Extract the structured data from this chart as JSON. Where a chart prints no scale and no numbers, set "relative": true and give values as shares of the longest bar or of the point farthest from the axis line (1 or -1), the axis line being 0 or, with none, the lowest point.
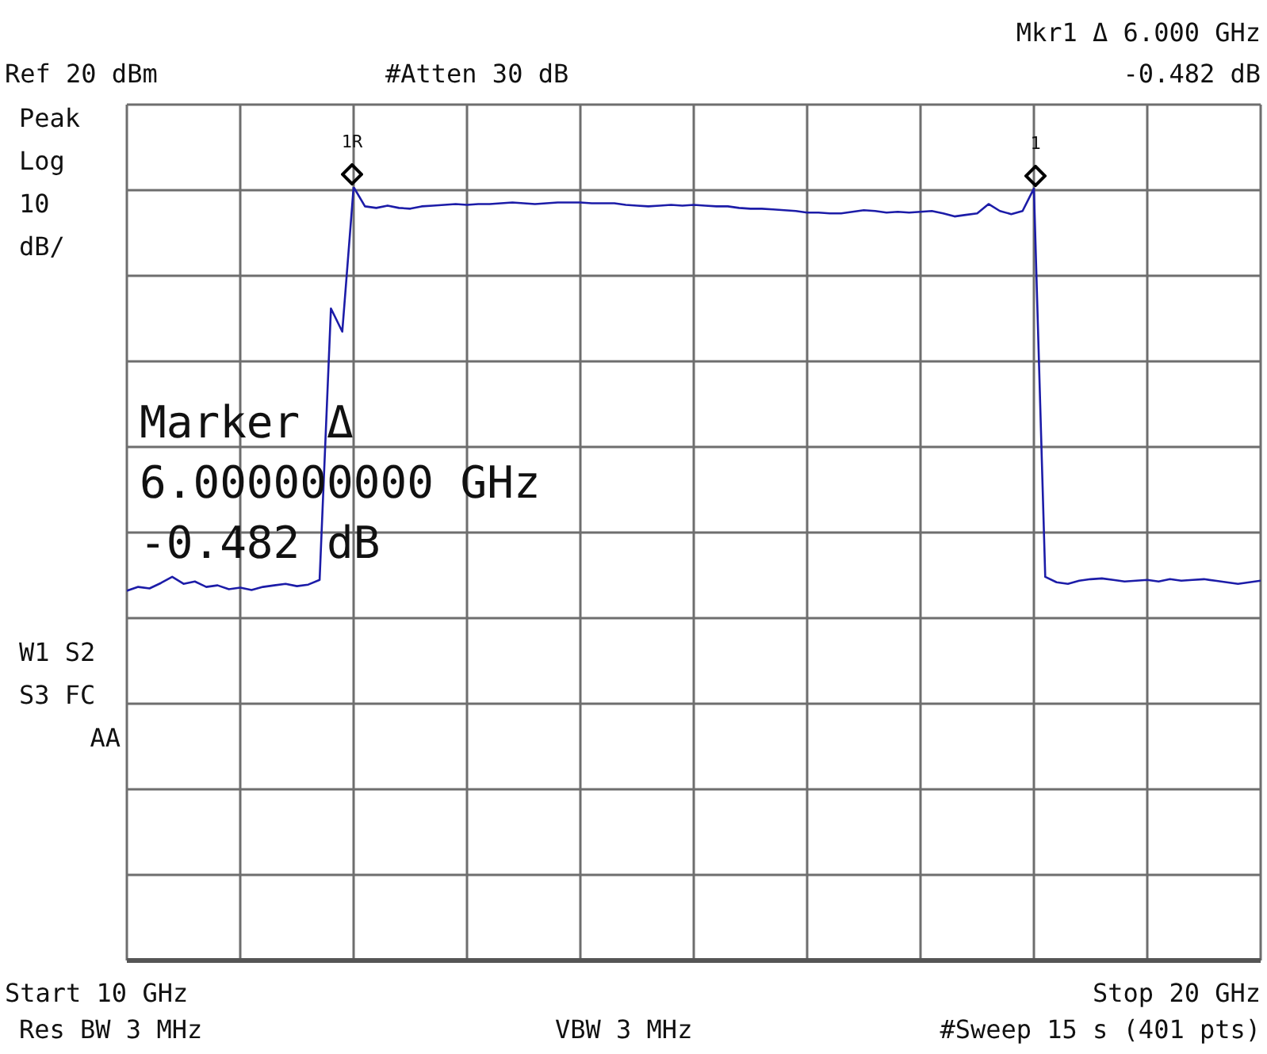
{
  "chart_data": {
    "type": "line",
    "relative": true,
    "categories": [
      null,
      null,
      null,
      null,
      null,
      null,
      null,
      null,
      null,
      null,
      null,
      null,
      null,
      null,
      null,
      null,
      null,
      null,
      null,
      null,
      null,
      null,
      null,
      null,
      null,
      null,
      null,
      null,
      null,
      null,
      null,
      null,
      null,
      null,
      null,
      null,
      null,
      null,
      null,
      null,
      null,
      null,
      null,
      null,
      null,
      null,
      null,
      null,
      null,
      null,
      null,
      null,
      null,
      null,
      null,
      null,
      null,
      null,
      null,
      null,
      null,
      null,
      null,
      null,
      null,
      null,
      null,
      null,
      null,
      null,
      null,
      null,
      null,
      null,
      null,
      null,
      null,
      null,
      null,
      null,
      null,
      null,
      null,
      null,
      null,
      null,
      null,
      null,
      null,
      null,
      null,
      null,
      null,
      null,
      null,
      null,
      null,
      null,
      null,
      null,
      null
    ],
    "series": [
      {
        "color": "#1c1ca8",
        "values": [
          0.478,
          0.483,
          0.481,
          0.488,
          0.496,
          0.487,
          0.49,
          0.483,
          0.485,
          0.48,
          0.482,
          0.479,
          0.483,
          0.485,
          0.487,
          0.484,
          0.486,
          0.492,
          0.843,
          0.813,
          1,
          0.975,
          0.973,
          0.976,
          0.973,
          0.972,
          0.975,
          0.976,
          0.977,
          0.978,
          0.977,
          0.978,
          0.978,
          0.979,
          0.98,
          0.979,
          0.978,
          0.979,
          0.98,
          0.98,
          0.98,
          0.979,
          0.979,
          0.979,
          0.977,
          0.976,
          0.975,
          0.976,
          0.977,
          0.976,
          0.977,
          0.976,
          0.975,
          0.975,
          0.973,
          0.972,
          0.972,
          0.971,
          0.97,
          0.969,
          0.967,
          0.967,
          0.966,
          0.966,
          0.968,
          0.97,
          0.969,
          0.967,
          0.968,
          0.967,
          0.968,
          0.969,
          0.966,
          0.962,
          0.964,
          0.966,
          0.978,
          0.969,
          0.965,
          0.969,
          0.998,
          0.496,
          0.489,
          0.487,
          0.491,
          0.493,
          0.494,
          0.492,
          0.49,
          0.491,
          0.492,
          0.49,
          0.493,
          0.491,
          0.492,
          0.493,
          0.491,
          0.489,
          0.487,
          0.489,
          0.491
        ]
      }
    ],
    "grid": true,
    "annotations": [
      "Ref 20 dBm",
      "#Atten 30 dB",
      "Mkr1 Δ 6.000 GHz",
      "-0.482 dB",
      "Peak",
      "Log",
      "10",
      "dB/",
      "W1 S2",
      "S3 FC",
      "AA",
      "Marker Δ",
      "6.000000000 GHz",
      "-0.482 dB",
      "Res BW 3 MHz",
      "VBW 3 MHz",
      "#Sweep 15 s (401 pts)",
      "Start 10 GHz",
      "Stop 20 GHz",
      "1R",
      "1"
    ]
  }
}
